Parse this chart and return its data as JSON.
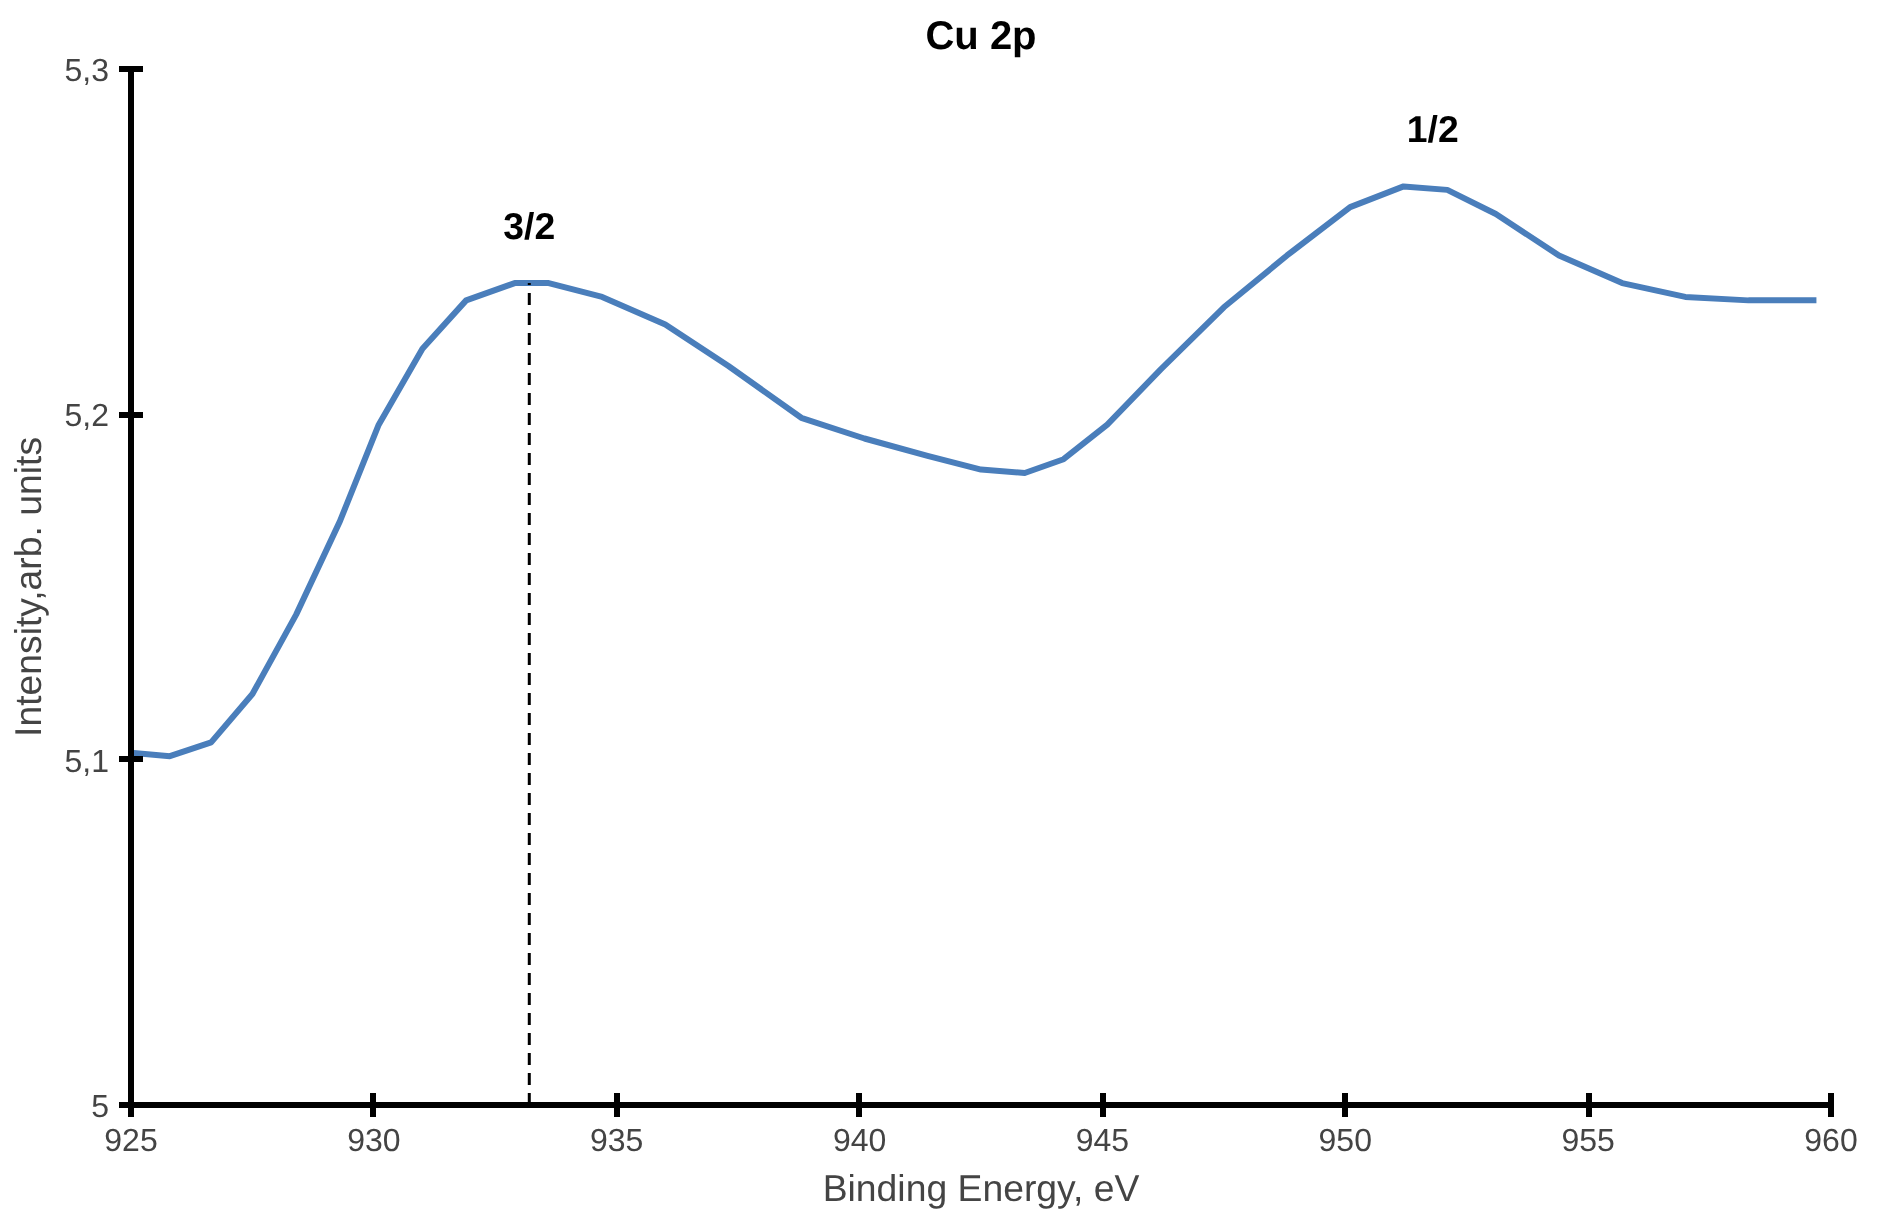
{
  "chart_data": {
    "type": "line",
    "title": "Cu 2p",
    "xlabel": "Binding Energy, eV",
    "ylabel": "Intensity,arb. units",
    "xlim": [
      925,
      960
    ],
    "xticks": [
      925,
      930,
      935,
      940,
      945,
      950,
      955,
      960
    ],
    "ylim": [
      5,
      5.3
    ],
    "yticks": [
      5,
      {
        "value": 5.1,
        "label": "5,1"
      },
      {
        "value": 5.2,
        "label": "5,2"
      },
      {
        "value": 5.3,
        "label": "5,3"
      }
    ],
    "line_style": "solid",
    "ref_lines": [
      {
        "axis": "x",
        "value": 933.2,
        "color": "#000000",
        "line_style": "dashed"
      }
    ],
    "annotations": [
      {
        "text": "3/2",
        "x": 933.2,
        "y": 5.238
      },
      {
        "text": "1/2",
        "x": 951.8,
        "y": 5.266
      }
    ],
    "series": [
      {
        "color": "#4a7ebb",
        "x": [
          925,
          925.8,
          926.65,
          927.5,
          928.4,
          929.3,
          930.1,
          931.0,
          931.9,
          932.9,
          933.6,
          934.7,
          936.0,
          937.3,
          938.8,
          940.1,
          941.4,
          942.5,
          943.4,
          944.2,
          945.1,
          946.2,
          947.5,
          948.8,
          950.1,
          951.2,
          952.1,
          953.1,
          954.4,
          955.7,
          957.0,
          958.3,
          959.7
        ],
        "values": [
          5.102,
          5.101,
          5.105,
          5.119,
          5.142,
          5.169,
          5.197,
          5.219,
          5.233,
          5.238,
          5.238,
          5.234,
          5.226,
          5.214,
          5.199,
          5.193,
          5.188,
          5.184,
          5.183,
          5.187,
          5.197,
          5.213,
          5.231,
          5.246,
          5.26,
          5.266,
          5.265,
          5.258,
          5.246,
          5.238,
          5.234,
          5.233,
          5.233
        ]
      }
    ]
  }
}
